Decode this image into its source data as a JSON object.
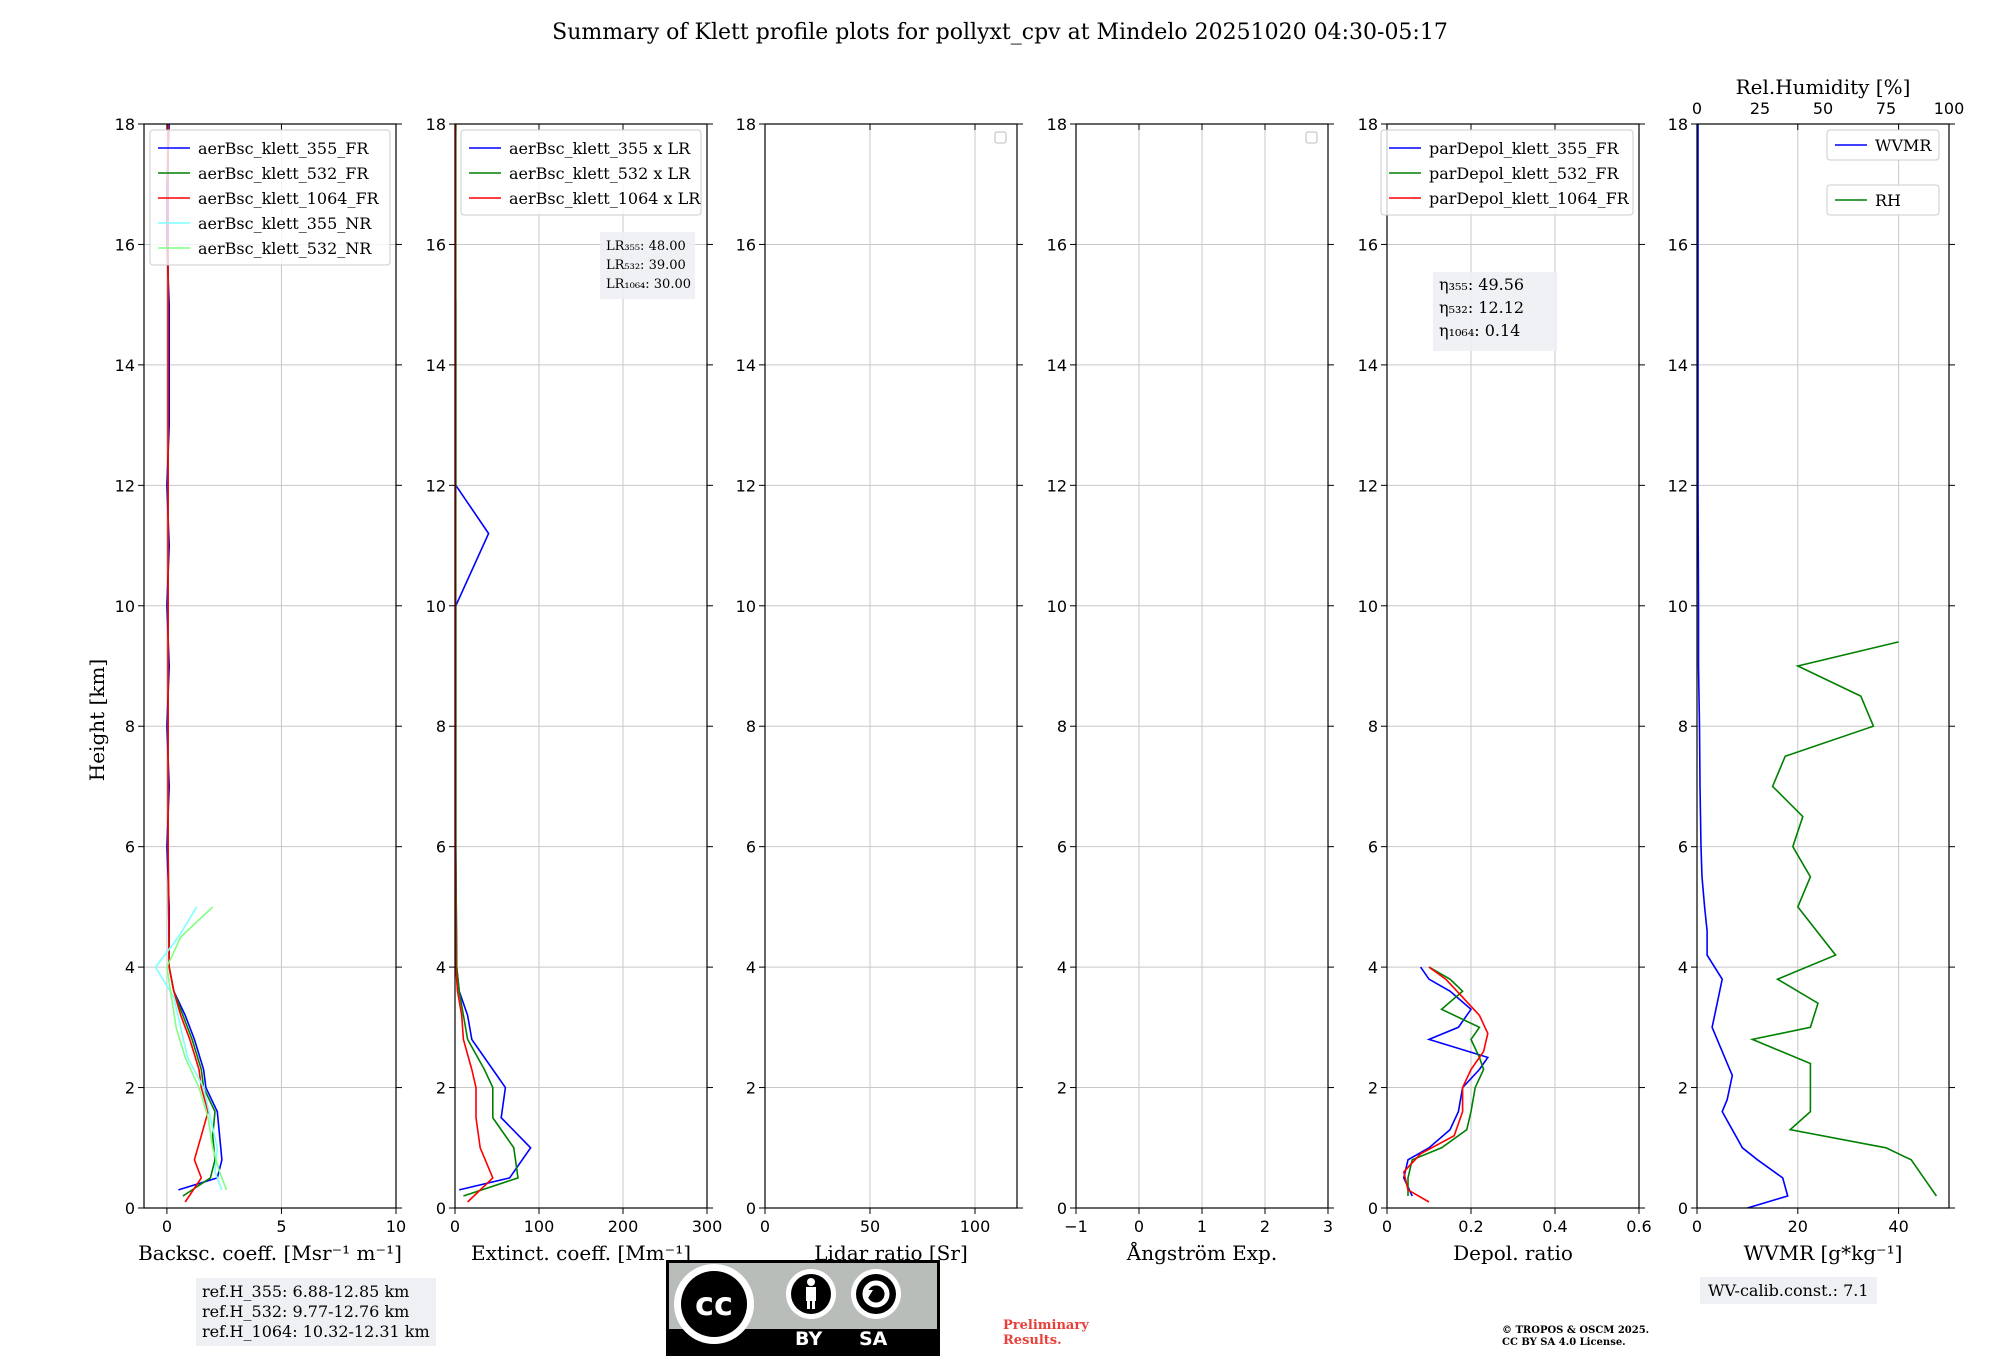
{
  "title": "Summary of Klett profile plots for pollyxt_cpv at Mindelo 20251020 04:30-05:17",
  "ref_heights": [
    "ref.H_355: 6.88-12.85 km",
    "ref.H_532: 9.77-12.76 km",
    "ref.H_1064: 10.32-12.31 km"
  ],
  "wv_calib": "WV-calib.const.: 7.1",
  "preliminary": [
    "Preliminary",
    "Results."
  ],
  "copyright": [
    "© TROPOS & OSCM 2025.",
    "CC BY SA 4.0 License."
  ],
  "license_logo": {
    "by": "BY",
    "sa": "SA"
  },
  "colors": {
    "blue": "#0000ff",
    "green": "#008000",
    "red": "#ff0000",
    "cyan": "#7fffff",
    "lightgreen": "#80ff80"
  },
  "chart_data": [
    {
      "type": "line",
      "xlabel": "Backsc. coeff. [Msr⁻¹ m⁻¹]",
      "ylabel": "Height [km]",
      "xlim": [
        -1,
        10
      ],
      "ylim": [
        0,
        18
      ],
      "xticks": [
        0,
        5,
        10
      ],
      "yticks": [
        0,
        2,
        4,
        6,
        8,
        10,
        12,
        14,
        16,
        18
      ],
      "grid": true,
      "legend": "top-right",
      "series": [
        {
          "name": "aerBsc_klett_355_FR",
          "color": "#0000ff",
          "profile": [
            [
              0.3,
              0.5
            ],
            [
              0.5,
              2.2
            ],
            [
              0.8,
              2.4
            ],
            [
              1.2,
              2.3
            ],
            [
              1.6,
              2.2
            ],
            [
              2.0,
              1.7
            ],
            [
              2.3,
              1.6
            ],
            [
              2.8,
              1.2
            ],
            [
              3.2,
              0.8
            ],
            [
              3.6,
              0.3
            ],
            [
              4.0,
              0.1
            ],
            [
              5,
              0.1
            ],
            [
              6,
              0.0
            ],
            [
              7,
              0.1
            ],
            [
              8,
              0.0
            ],
            [
              9,
              0.1
            ],
            [
              10,
              0.0
            ],
            [
              11,
              0.1
            ],
            [
              12,
              0.0
            ],
            [
              13,
              0.1
            ],
            [
              14,
              0.1
            ],
            [
              15,
              0.1
            ],
            [
              16,
              0.0
            ],
            [
              17,
              0.0
            ],
            [
              18,
              0.1
            ]
          ]
        },
        {
          "name": "aerBsc_klett_532_FR",
          "color": "#008000",
          "profile": [
            [
              0.2,
              0.7
            ],
            [
              0.5,
              1.9
            ],
            [
              0.8,
              2.1
            ],
            [
              1.2,
              2.0
            ],
            [
              1.6,
              2.1
            ],
            [
              2.0,
              1.6
            ],
            [
              2.3,
              1.5
            ],
            [
              2.8,
              1.1
            ],
            [
              3.2,
              0.7
            ],
            [
              3.6,
              0.3
            ],
            [
              4.0,
              0.1
            ],
            [
              6,
              0.05
            ],
            [
              8,
              0.05
            ],
            [
              10,
              0.05
            ],
            [
              12,
              0.05
            ],
            [
              14,
              0.05
            ],
            [
              16,
              0.05
            ],
            [
              18,
              0.05
            ]
          ]
        },
        {
          "name": "aerBsc_klett_1064_FR",
          "color": "#ff0000",
          "profile": [
            [
              0.1,
              0.8
            ],
            [
              0.5,
              1.5
            ],
            [
              0.8,
              1.2
            ],
            [
              1.2,
              1.5
            ],
            [
              1.6,
              1.8
            ],
            [
              2.0,
              1.5
            ],
            [
              2.3,
              1.4
            ],
            [
              2.8,
              1.0
            ],
            [
              3.2,
              0.6
            ],
            [
              3.6,
              0.3
            ],
            [
              4.0,
              0.1
            ],
            [
              6,
              0.05
            ],
            [
              8,
              0.05
            ],
            [
              10,
              0.05
            ],
            [
              12,
              0.05
            ],
            [
              14,
              0.05
            ],
            [
              16,
              0.05
            ],
            [
              18,
              0.05
            ]
          ]
        },
        {
          "name": "aerBsc_klett_355_NR",
          "color": "#7fffff",
          "profile": [
            [
              0.3,
              2.4
            ],
            [
              0.6,
              2.1
            ],
            [
              1.0,
              2.2
            ],
            [
              1.5,
              1.9
            ],
            [
              2.0,
              1.6
            ],
            [
              2.5,
              0.9
            ],
            [
              3.0,
              0.6
            ],
            [
              3.5,
              0.3
            ],
            [
              4.0,
              -0.5
            ],
            [
              4.5,
              0.5
            ],
            [
              5.0,
              1.3
            ]
          ]
        },
        {
          "name": "aerBsc_klett_532_NR",
          "color": "#80ff80",
          "profile": [
            [
              0.3,
              2.6
            ],
            [
              0.6,
              2.3
            ],
            [
              1.0,
              2.0
            ],
            [
              1.5,
              1.8
            ],
            [
              2.0,
              1.4
            ],
            [
              2.5,
              0.8
            ],
            [
              3.0,
              0.4
            ],
            [
              3.5,
              0.2
            ],
            [
              4.0,
              0.0
            ],
            [
              4.5,
              0.6
            ],
            [
              5.0,
              2.0
            ]
          ]
        }
      ]
    },
    {
      "type": "line",
      "xlabel": "Extinct. coeff. [Mm⁻¹]",
      "xlim": [
        0,
        300
      ],
      "ylim": [
        0,
        18
      ],
      "xticks": [
        0,
        100,
        200,
        300
      ],
      "yticks": [
        0,
        2,
        4,
        6,
        8,
        10,
        12,
        14,
        16,
        18
      ],
      "grid": true,
      "legend": "top-right",
      "lidar_ratios": [
        "LR₃₅₅: 48.00",
        "LR₅₃₂: 39.00",
        "LR₁₀₆₄: 30.00"
      ],
      "series": [
        {
          "name": "aerBsc_klett_355 x LR",
          "color": "#0000ff",
          "profile": [
            [
              0.3,
              5
            ],
            [
              0.5,
              65
            ],
            [
              1.0,
              90
            ],
            [
              1.5,
              55
            ],
            [
              2.0,
              60
            ],
            [
              2.3,
              45
            ],
            [
              2.8,
              20
            ],
            [
              3.2,
              15
            ],
            [
              3.6,
              5
            ],
            [
              4.0,
              2
            ],
            [
              6,
              1
            ],
            [
              8,
              1
            ],
            [
              10,
              1
            ],
            [
              11.2,
              40
            ],
            [
              12,
              1
            ],
            [
              14,
              1
            ],
            [
              15,
              1
            ],
            [
              16,
              0
            ],
            [
              18,
              1
            ]
          ]
        },
        {
          "name": "aerBsc_klett_532 x LR",
          "color": "#008000",
          "profile": [
            [
              0.2,
              10
            ],
            [
              0.5,
              75
            ],
            [
              1.0,
              70
            ],
            [
              1.5,
              45
            ],
            [
              2.0,
              45
            ],
            [
              2.3,
              35
            ],
            [
              2.8,
              15
            ],
            [
              3.2,
              10
            ],
            [
              3.6,
              5
            ],
            [
              4.0,
              2
            ],
            [
              6,
              1
            ],
            [
              10,
              1
            ],
            [
              14,
              1
            ],
            [
              18,
              1
            ]
          ]
        },
        {
          "name": "aerBsc_klett_1064 x LR",
          "color": "#ff0000",
          "profile": [
            [
              0.1,
              15
            ],
            [
              0.5,
              45
            ],
            [
              1.0,
              30
            ],
            [
              1.5,
              25
            ],
            [
              2.0,
              25
            ],
            [
              2.3,
              20
            ],
            [
              2.8,
              10
            ],
            [
              3.2,
              8
            ],
            [
              3.6,
              3
            ],
            [
              4.0,
              1
            ],
            [
              6,
              0.5
            ],
            [
              10,
              0.5
            ],
            [
              14,
              0.5
            ],
            [
              18,
              0.5
            ]
          ]
        }
      ]
    },
    {
      "type": "line",
      "xlabel": "Lidar ratio [Sr]",
      "xlim": [
        0,
        120
      ],
      "ylim": [
        0,
        18
      ],
      "xticks": [
        0,
        50,
        100
      ],
      "yticks": [
        0,
        2,
        4,
        6,
        8,
        10,
        12,
        14,
        16,
        18
      ],
      "grid": true,
      "legend": "top-right",
      "series": []
    },
    {
      "type": "line",
      "xlabel": "Ångström Exp.",
      "xlim": [
        -1,
        3
      ],
      "ylim": [
        0,
        18
      ],
      "xticks": [
        -1,
        0,
        1,
        2,
        3
      ],
      "yticks": [
        0,
        2,
        4,
        6,
        8,
        10,
        12,
        14,
        16,
        18
      ],
      "grid": true,
      "legend": "top-right",
      "series": []
    },
    {
      "type": "line",
      "xlabel": "Depol. ratio",
      "xlim": [
        0,
        0.6
      ],
      "ylim": [
        0,
        18
      ],
      "xticks": [
        0.0,
        0.2,
        0.4,
        0.6
      ],
      "yticks": [
        0,
        2,
        4,
        6,
        8,
        10,
        12,
        14,
        16,
        18
      ],
      "grid": true,
      "legend": "top-right",
      "calib_factors": [
        "η₃₅₅: 49.56",
        "η₅₃₂: 12.12",
        "η₁₀₆₄: 0.14"
      ],
      "series": [
        {
          "name": "parDepol_klett_355_FR",
          "color": "#0000ff",
          "profile": [
            [
              0.2,
              0.06
            ],
            [
              0.5,
              0.04
            ],
            [
              0.8,
              0.05
            ],
            [
              1.0,
              0.1
            ],
            [
              1.3,
              0.15
            ],
            [
              1.6,
              0.17
            ],
            [
              2.0,
              0.18
            ],
            [
              2.3,
              0.22
            ],
            [
              2.5,
              0.24
            ],
            [
              2.8,
              0.1
            ],
            [
              3.0,
              0.17
            ],
            [
              3.3,
              0.2
            ],
            [
              3.6,
              0.15
            ],
            [
              3.8,
              0.1
            ],
            [
              4.0,
              0.08
            ]
          ]
        },
        {
          "name": "parDepol_klett_532_FR",
          "color": "#008000",
          "profile": [
            [
              0.2,
              0.05
            ],
            [
              0.5,
              0.05
            ],
            [
              0.8,
              0.06
            ],
            [
              1.0,
              0.13
            ],
            [
              1.3,
              0.19
            ],
            [
              1.6,
              0.2
            ],
            [
              2.0,
              0.21
            ],
            [
              2.3,
              0.23
            ],
            [
              2.5,
              0.22
            ],
            [
              2.8,
              0.2
            ],
            [
              3.0,
              0.22
            ],
            [
              3.3,
              0.13
            ],
            [
              3.6,
              0.18
            ],
            [
              3.8,
              0.15
            ],
            [
              4.0,
              0.1
            ]
          ]
        },
        {
          "name": "parDepol_klett_1064_FR",
          "color": "#ff0000",
          "profile": [
            [
              0.1,
              0.1
            ],
            [
              0.3,
              0.05
            ],
            [
              0.6,
              0.04
            ],
            [
              0.9,
              0.08
            ],
            [
              1.2,
              0.16
            ],
            [
              1.6,
              0.18
            ],
            [
              2.0,
              0.18
            ],
            [
              2.3,
              0.2
            ],
            [
              2.6,
              0.23
            ],
            [
              2.9,
              0.24
            ],
            [
              3.2,
              0.22
            ],
            [
              3.5,
              0.18
            ],
            [
              3.8,
              0.14
            ],
            [
              4.0,
              0.1
            ]
          ]
        }
      ]
    },
    {
      "type": "line",
      "xlabel": "WVMR [g*kg⁻¹]",
      "x2label": "Rel.Humidity [%]",
      "xlim": [
        0,
        50
      ],
      "x2lim": [
        0,
        100
      ],
      "ylim": [
        0,
        18
      ],
      "xticks": [
        0,
        20,
        40
      ],
      "x2ticks": [
        0,
        25,
        50,
        75,
        100
      ],
      "yticks": [
        0,
        2,
        4,
        6,
        8,
        10,
        12,
        14,
        16,
        18
      ],
      "grid": true,
      "legend": "top-right",
      "series": [
        {
          "name": "WVMR",
          "color": "#0000ff",
          "axis": "bottom",
          "profile": [
            [
              0.0,
              10
            ],
            [
              0.2,
              18
            ],
            [
              0.5,
              17
            ],
            [
              0.8,
              12
            ],
            [
              1.0,
              9
            ],
            [
              1.3,
              7
            ],
            [
              1.6,
              5
            ],
            [
              1.8,
              6
            ],
            [
              2.2,
              7
            ],
            [
              2.6,
              5
            ],
            [
              3.0,
              3
            ],
            [
              3.4,
              4
            ],
            [
              3.8,
              5
            ],
            [
              4.2,
              2
            ],
            [
              4.6,
              2
            ],
            [
              5.0,
              1.5
            ],
            [
              5.5,
              1
            ],
            [
              6.0,
              0.8
            ],
            [
              7,
              0.6
            ],
            [
              8,
              0.5
            ],
            [
              9,
              0.3
            ],
            [
              10,
              0.3
            ],
            [
              12,
              0.2
            ],
            [
              14,
              0.2
            ],
            [
              16,
              0.2
            ],
            [
              18,
              0.2
            ]
          ]
        },
        {
          "name": "RH",
          "color": "#008000",
          "axis": "top",
          "profile": [
            [
              0.2,
              95
            ],
            [
              0.5,
              90
            ],
            [
              0.8,
              85
            ],
            [
              1.0,
              75
            ],
            [
              1.3,
              37
            ],
            [
              1.6,
              45
            ],
            [
              2.0,
              45
            ],
            [
              2.4,
              45
            ],
            [
              2.8,
              22
            ],
            [
              3.0,
              45
            ],
            [
              3.4,
              48
            ],
            [
              3.8,
              32
            ],
            [
              4.2,
              55
            ],
            [
              5.0,
              40
            ],
            [
              5.5,
              45
            ],
            [
              6.0,
              38
            ],
            [
              6.5,
              42
            ],
            [
              7,
              30
            ],
            [
              7.5,
              35
            ],
            [
              8,
              70
            ],
            [
              8.5,
              65
            ],
            [
              9,
              40
            ],
            [
              9.4,
              80
            ]
          ]
        }
      ]
    }
  ]
}
